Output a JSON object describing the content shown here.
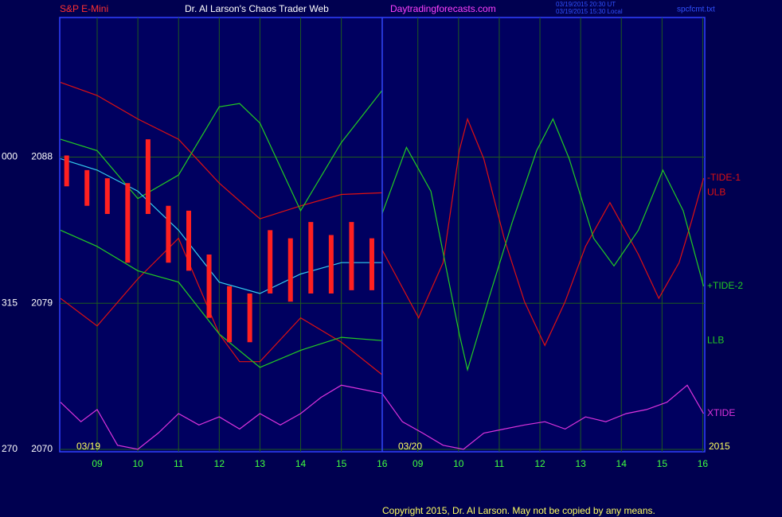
{
  "header": {
    "symbol": "S&P E-Mini",
    "site_title": "Dr. Al Larson's Chaos Trader Web",
    "url": "Daytradingforecasts.com",
    "timestamp_ut": "03/19/2015 20:30 UT",
    "timestamp_local": "03/19/2015 15:30 Local",
    "file": "spcfcmt.txt"
  },
  "footer": {
    "copyright": "Copyright 2015, Dr. Al Larson. May not be copied by any means."
  },
  "chart_data": {
    "type": "line",
    "xlim": [
      8.08,
      23.93
    ],
    "ylim": [
      2069.85,
      2096.6
    ],
    "xticks": [
      {
        "value": 9,
        "label": "09"
      },
      10,
      11,
      12,
      13,
      14,
      15,
      16,
      {
        "value": 16.88,
        "label": "09"
      },
      {
        "value": 17.88,
        "label": "10"
      },
      {
        "value": 18.88,
        "label": "11"
      },
      {
        "value": 19.88,
        "label": "12"
      },
      {
        "value": 20.88,
        "label": "13"
      },
      {
        "value": 21.88,
        "label": "14"
      },
      {
        "value": 22.88,
        "label": "15"
      },
      {
        "value": 23.88,
        "label": "16"
      }
    ],
    "yticks": [
      2088,
      2079,
      2070
    ],
    "left_prefix_labels": [
      "000",
      "315",
      "270"
    ],
    "day_labels": [
      "03/19",
      "03/20"
    ],
    "year_label": "2015",
    "grid": true,
    "price": {
      "color": "#ff2020",
      "x": [
        8.25,
        8.75,
        9.25,
        9.75,
        10.25,
        10.75,
        11.25,
        11.75,
        12.25,
        12.75,
        13.25,
        13.75,
        14.25,
        14.75,
        15.25,
        15.75
      ],
      "high": [
        2088.1,
        2087.2,
        2086.7,
        2086.4,
        2089.1,
        2085.0,
        2084.7,
        2082.0,
        2080.05,
        2079.6,
        2083.5,
        2083.0,
        2084.0,
        2083.2,
        2084.0,
        2083.0
      ],
      "low": [
        2086.2,
        2085.0,
        2084.5,
        2081.5,
        2084.5,
        2081.5,
        2081.0,
        2078.1,
        2076.6,
        2076.6,
        2079.6,
        2079.1,
        2079.6,
        2079.6,
        2079.8,
        2079.8
      ]
    },
    "series": [
      {
        "name": "ULB",
        "color": "#e01010",
        "x": [
          8.1,
          9,
          10,
          11,
          12,
          13,
          14,
          15,
          16
        ],
        "values": [
          2092.6,
          2091.8,
          2090.35,
          2089.1,
          2086.4,
          2084.2,
          2085.0,
          2085.7,
          2085.8
        ]
      },
      {
        "color": "#e01010",
        "x": [
          8.1,
          9,
          10,
          11,
          12,
          12.5,
          13,
          14,
          15,
          16
        ],
        "values": [
          2079.3,
          2077.6,
          2080.5,
          2083.0,
          2077.1,
          2075.4,
          2075.4,
          2078.1,
          2076.6,
          2074.6
        ]
      },
      {
        "color": "#22cc22",
        "x": [
          8.1,
          9,
          10,
          11,
          12,
          12.5,
          13,
          14,
          15,
          16
        ],
        "values": [
          2089.1,
          2088.4,
          2085.45,
          2086.9,
          2091.1,
          2091.3,
          2090.1,
          2084.7,
          2088.9,
          2092.1
        ]
      },
      {
        "name": "LLB",
        "color": "#22cc22",
        "x": [
          8.1,
          9,
          10,
          11,
          12,
          13,
          14,
          15,
          16
        ],
        "values": [
          2083.5,
          2082.5,
          2081.0,
          2080.3,
          2077.1,
          2075.05,
          2076.1,
          2076.9,
          2076.7
        ]
      },
      {
        "color": "#33ccee",
        "x": [
          8.1,
          9,
          10,
          11,
          12,
          13,
          14,
          15,
          16
        ],
        "values": [
          2087.9,
          2087.2,
          2085.9,
          2083.5,
          2080.3,
          2079.6,
          2080.8,
          2081.5,
          2081.5
        ]
      },
      {
        "name": "-TIDE-1",
        "color": "#e01010",
        "x": [
          16.0,
          16.9,
          17.5,
          17.9,
          18.1,
          18.5,
          19,
          19.5,
          20,
          20.5,
          21,
          21.6,
          22.3,
          22.8,
          23.3,
          23.6,
          23.9
        ],
        "values": [
          2082.3,
          2078.1,
          2081.5,
          2088.4,
          2090.35,
          2087.9,
          2083.0,
          2079.1,
          2076.4,
          2079.1,
          2082.5,
          2085.2,
          2082.0,
          2079.3,
          2081.5,
          2084.0,
          2086.7
        ]
      },
      {
        "name": "+TIDE-2",
        "color": "#22cc22",
        "x": [
          16.0,
          16.6,
          17.2,
          17.9,
          18.1,
          18.6,
          19.2,
          19.8,
          20.2,
          20.6,
          21.2,
          21.7,
          22.3,
          22.9,
          23.4,
          23.9
        ],
        "values": [
          2084.5,
          2088.6,
          2085.9,
          2077.1,
          2074.9,
          2079.1,
          2084.0,
          2088.4,
          2090.35,
          2087.9,
          2083.0,
          2081.3,
          2083.5,
          2087.2,
          2084.7,
          2080.05
        ]
      },
      {
        "name": "XTIDE",
        "color": "#dd33dd",
        "x": [
          8.1,
          8.6,
          9,
          9.5,
          10,
          10.5,
          11,
          11.5,
          12,
          12.5,
          13,
          13.5,
          14,
          14.5,
          15,
          15.5,
          16,
          16.5,
          17,
          17.5,
          18,
          18.5,
          19,
          19.5,
          20,
          20.5,
          21,
          21.5,
          22,
          22.5,
          23,
          23.5,
          23.9
        ],
        "values": [
          2072.9,
          2071.7,
          2072.45,
          2070.25,
          2070.0,
          2071.0,
          2072.2,
          2071.5,
          2072.0,
          2071.25,
          2072.2,
          2071.5,
          2072.2,
          2073.2,
          2073.95,
          2073.7,
          2073.45,
          2071.7,
          2071.0,
          2070.25,
          2070.0,
          2071.0,
          2071.25,
          2071.5,
          2071.7,
          2071.25,
          2072.0,
          2071.7,
          2072.2,
          2072.45,
          2072.9,
          2073.95,
          2072.2
        ]
      }
    ]
  }
}
